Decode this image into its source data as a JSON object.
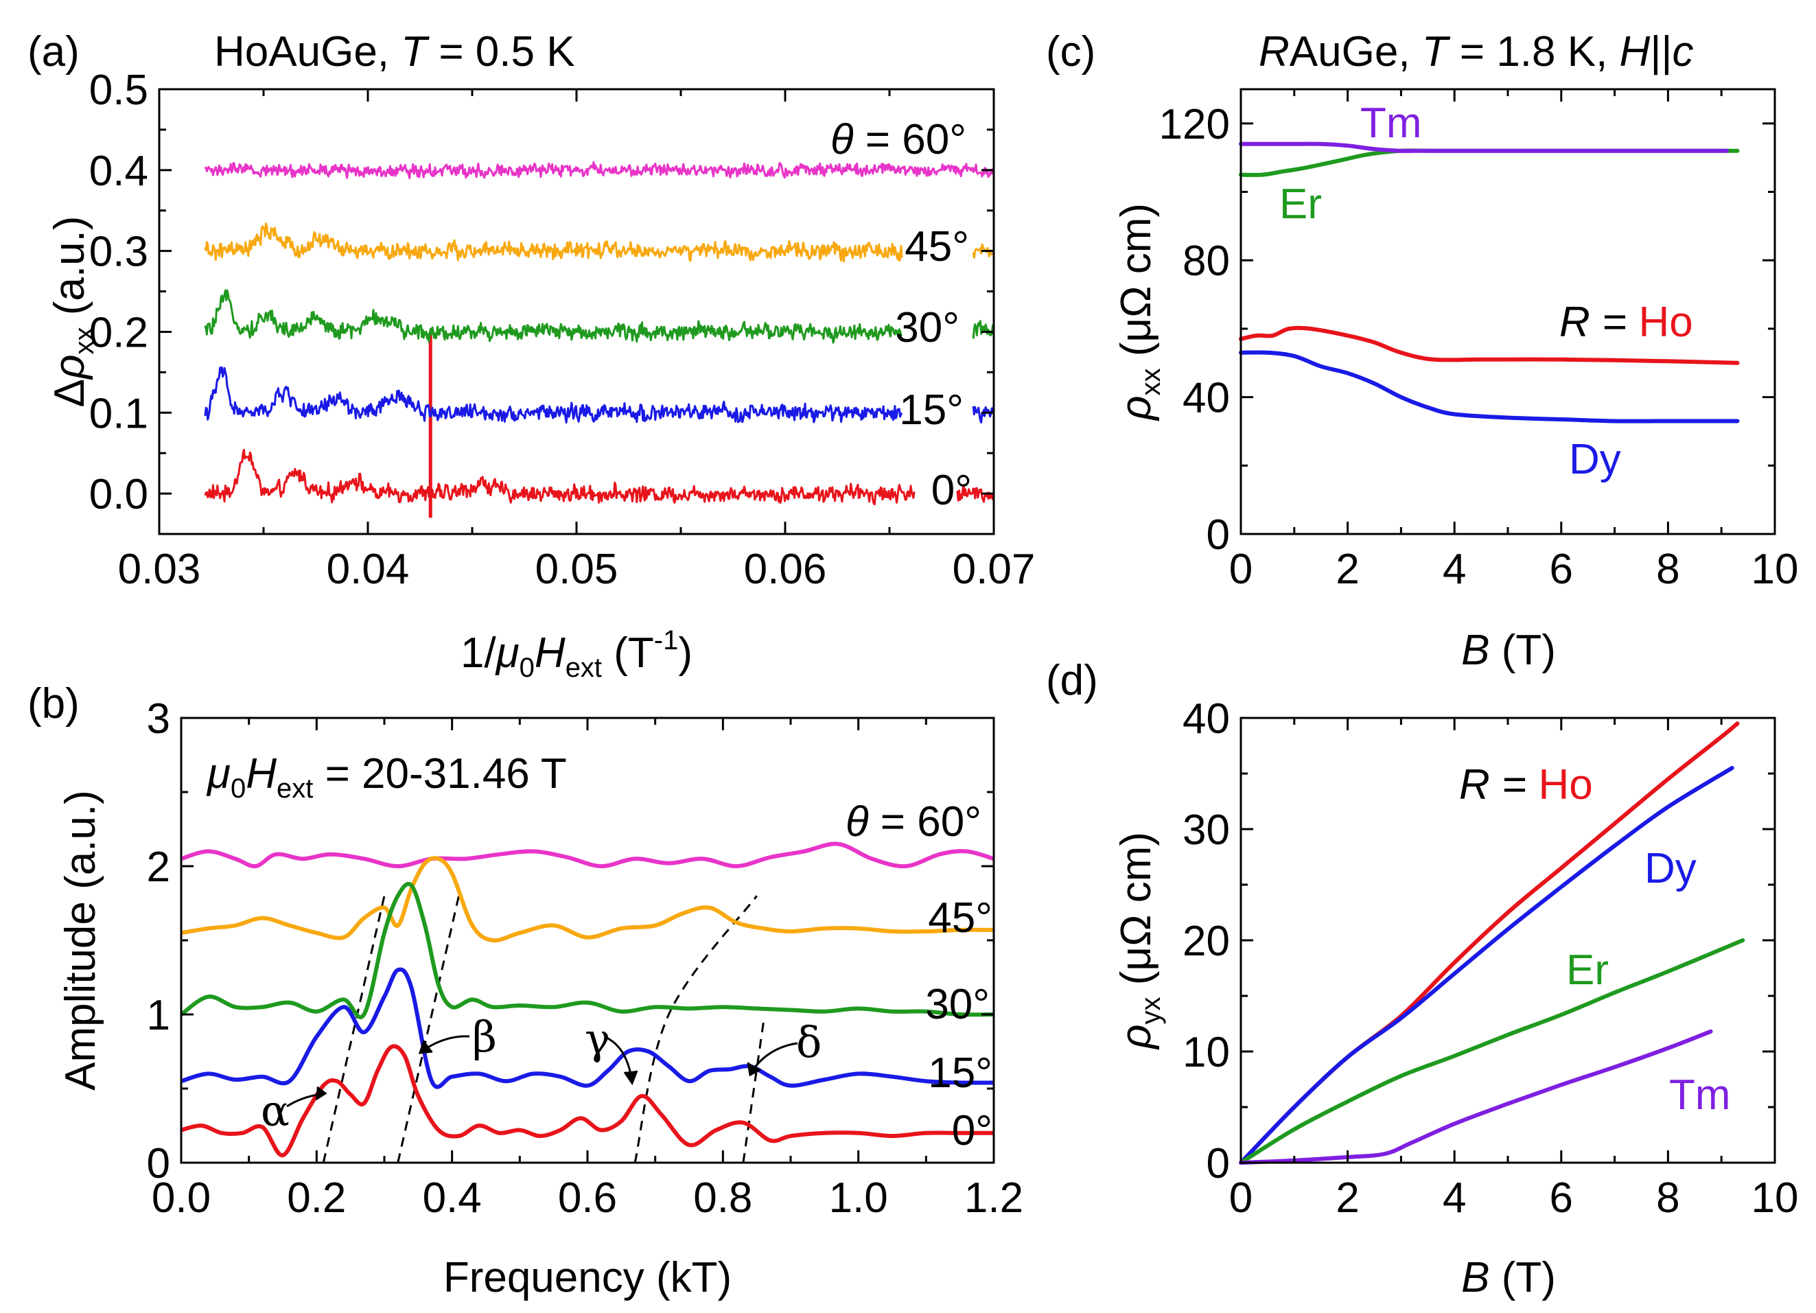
{
  "colors": {
    "0": "#e8141b",
    "15": "#1a1ae6",
    "30": "#1f9a1f",
    "45": "#f8a810",
    "60": "#e834c8",
    "Ho": "#e8141b",
    "Dy": "#1a1ae6",
    "Er": "#1f9a1f",
    "Tm": "#7f1fe0",
    "axis": "#000000",
    "ref": "#000000"
  },
  "chart_data": [
    {
      "panel": "(a)",
      "type": "line",
      "title_prefix": "HoAuGe, ",
      "title_T": "T",
      "title_suffix": " = 0.5 K",
      "xlabel_pre": "1/",
      "xlabel_mu": "μ",
      "xlabel_sub0": "0",
      "xlabel_H": "H",
      "xlabel_sub": "ext",
      "xlabel_unit": " (T",
      "xlabel_sup": "-1",
      "xlabel_close": ")",
      "ylabel_delta": "Δ",
      "ylabel_rho": "ρ",
      "ylabel_sub": "xx",
      "ylabel_unit": " (a.u.)",
      "xlim": [
        0.03,
        0.07
      ],
      "ylim": [
        -0.05,
        0.5
      ],
      "xticks": [
        "0.03",
        "0.04",
        "0.05",
        "0.06",
        "0.07"
      ],
      "yticks": [
        "0.0",
        "0.1",
        "0.2",
        "0.3",
        "0.4",
        "0.5"
      ],
      "theta_symbol": "θ",
      "theta_label": " = 60°",
      "series": [
        {
          "name": "0°",
          "offset": 0.0,
          "xmin": 0.0322,
          "xmax": 0.0702,
          "gap": [
            0.0662,
            0.0682
          ],
          "noise": 0.009,
          "peaks": [
            [
              0.0342,
              0.05,
              0.0005
            ],
            [
              0.0366,
              0.025,
              0.0006
            ],
            [
              0.0393,
              0.018,
              0.0006
            ],
            [
              0.0455,
              0.012,
              0.0008
            ]
          ],
          "spike": 0.043,
          "spike_top": 0.2,
          "color_key": "0"
        },
        {
          "name": "15°",
          "offset": 0.1,
          "xmin": 0.0322,
          "xmax": 0.0702,
          "gap": [
            0.0656,
            0.069
          ],
          "noise": 0.009,
          "peaks": [
            [
              0.033,
              0.05,
              0.0004
            ],
            [
              0.036,
              0.025,
              0.0006
            ],
            [
              0.0385,
              0.018,
              0.0006
            ],
            [
              0.0415,
              0.02,
              0.0008
            ]
          ],
          "color_key": "15"
        },
        {
          "name": "30°",
          "offset": 0.2,
          "xmin": 0.0322,
          "xmax": 0.0702,
          "gap": [
            0.0656,
            0.069
          ],
          "noise": 0.009,
          "peaks": [
            [
              0.0332,
              0.04,
              0.0005
            ],
            [
              0.0352,
              0.02,
              0.0006
            ],
            [
              0.0375,
              0.018,
              0.0006
            ],
            [
              0.0405,
              0.018,
              0.0008
            ]
          ],
          "color_key": "30"
        },
        {
          "name": "45°",
          "offset": 0.3,
          "xmin": 0.0322,
          "xmax": 0.0702,
          "gap": [
            0.0656,
            0.069
          ],
          "noise": 0.009,
          "peaks": [
            [
              0.0353,
              0.025,
              0.0007
            ],
            [
              0.0378,
              0.015,
              0.0007
            ]
          ],
          "color_key": "45"
        },
        {
          "name": "60°",
          "offset": 0.4,
          "xmin": 0.0322,
          "xmax": 0.0702,
          "noise": 0.007,
          "peaks": [],
          "color_key": "60"
        }
      ],
      "labels": [
        "0°",
        "15°",
        "30°",
        "45°"
      ]
    },
    {
      "panel": "(b)",
      "type": "line",
      "annotation_mu": "μ",
      "annotation_sub0": "0",
      "annotation_H": "H",
      "annotation_sub": "ext",
      "annotation_rest": " = 20-31.46 T",
      "xlabel": "Frequency (kT)",
      "ylabel": "Amplitude (a.u.)",
      "xlim": [
        0.0,
        1.2
      ],
      "ylim": [
        0,
        3
      ],
      "xticks": [
        "0.0",
        "0.2",
        "0.4",
        "0.6",
        "0.8",
        "1.0",
        "1.2"
      ],
      "yticks": [
        "0",
        "1",
        "2",
        "3"
      ],
      "theta_symbol": "θ",
      "theta_label": " = 60°",
      "series": [
        {
          "name": "0°",
          "color_key": "0",
          "x": [
            0.0,
            0.03,
            0.06,
            0.09,
            0.12,
            0.15,
            0.18,
            0.21,
            0.23,
            0.25,
            0.27,
            0.29,
            0.31,
            0.33,
            0.35,
            0.38,
            0.41,
            0.44,
            0.47,
            0.5,
            0.53,
            0.56,
            0.59,
            0.62,
            0.65,
            0.68,
            0.71,
            0.75,
            0.79,
            0.83,
            0.87,
            0.9,
            0.95,
            1.0,
            1.05,
            1.1,
            1.15,
            1.2
          ],
          "y": [
            0.22,
            0.25,
            0.2,
            0.2,
            0.24,
            0.05,
            0.3,
            0.52,
            0.55,
            0.46,
            0.4,
            0.62,
            0.78,
            0.72,
            0.45,
            0.22,
            0.18,
            0.25,
            0.2,
            0.22,
            0.18,
            0.22,
            0.3,
            0.22,
            0.28,
            0.45,
            0.32,
            0.12,
            0.22,
            0.27,
            0.15,
            0.18,
            0.2,
            0.2,
            0.18,
            0.2,
            0.2,
            0.2
          ]
        },
        {
          "name": "15°",
          "color_key": "15",
          "x": [
            0.0,
            0.04,
            0.08,
            0.12,
            0.16,
            0.2,
            0.24,
            0.27,
            0.3,
            0.32,
            0.34,
            0.37,
            0.4,
            0.44,
            0.48,
            0.52,
            0.56,
            0.6,
            0.63,
            0.66,
            0.69,
            0.72,
            0.75,
            0.78,
            0.81,
            0.84,
            0.87,
            0.9,
            0.95,
            1.0,
            1.05,
            1.1,
            1.15,
            1.2
          ],
          "y": [
            0.55,
            0.6,
            0.56,
            0.58,
            0.55,
            0.85,
            1.05,
            0.88,
            1.12,
            1.3,
            1.18,
            0.55,
            0.58,
            0.6,
            0.55,
            0.6,
            0.58,
            0.52,
            0.62,
            0.75,
            0.75,
            0.65,
            0.55,
            0.62,
            0.63,
            0.65,
            0.58,
            0.52,
            0.56,
            0.6,
            0.58,
            0.55,
            0.54,
            0.54
          ]
        },
        {
          "name": "30°",
          "color_key": "30",
          "x": [
            0.0,
            0.04,
            0.08,
            0.12,
            0.16,
            0.2,
            0.24,
            0.27,
            0.3,
            0.32,
            0.34,
            0.36,
            0.38,
            0.4,
            0.43,
            0.46,
            0.5,
            0.55,
            0.6,
            0.65,
            0.7,
            0.75,
            0.8,
            0.85,
            0.9,
            0.95,
            1.0,
            1.05,
            1.1,
            1.15,
            1.2
          ],
          "y": [
            1.0,
            1.12,
            1.05,
            1.05,
            1.08,
            1.02,
            1.1,
            1.0,
            1.55,
            1.8,
            1.87,
            1.6,
            1.2,
            1.05,
            1.1,
            1.05,
            1.06,
            1.05,
            1.08,
            1.02,
            1.05,
            1.04,
            1.05,
            1.04,
            1.03,
            1.02,
            1.04,
            1.02,
            1.02,
            1.0,
            1.0
          ]
        },
        {
          "name": "45°",
          "color_key": "45",
          "x": [
            0.0,
            0.04,
            0.08,
            0.12,
            0.16,
            0.2,
            0.24,
            0.27,
            0.3,
            0.32,
            0.34,
            0.36,
            0.38,
            0.4,
            0.43,
            0.46,
            0.5,
            0.55,
            0.6,
            0.65,
            0.7,
            0.74,
            0.78,
            0.82,
            0.86,
            0.9,
            0.95,
            1.0,
            1.05,
            1.1,
            1.15,
            1.2
          ],
          "y": [
            1.55,
            1.58,
            1.6,
            1.65,
            1.6,
            1.55,
            1.52,
            1.65,
            1.72,
            1.6,
            1.85,
            2.02,
            2.05,
            1.95,
            1.6,
            1.5,
            1.55,
            1.6,
            1.52,
            1.58,
            1.6,
            1.68,
            1.72,
            1.62,
            1.58,
            1.56,
            1.58,
            1.58,
            1.56,
            1.56,
            1.57,
            1.57
          ]
        },
        {
          "name": "60°",
          "color_key": "60",
          "x": [
            0.0,
            0.04,
            0.08,
            0.11,
            0.14,
            0.18,
            0.22,
            0.27,
            0.32,
            0.37,
            0.42,
            0.47,
            0.52,
            0.57,
            0.62,
            0.67,
            0.72,
            0.77,
            0.82,
            0.87,
            0.92,
            0.97,
            1.02,
            1.07,
            1.12,
            1.16,
            1.2
          ],
          "y": [
            2.05,
            2.1,
            2.05,
            2.0,
            2.08,
            2.05,
            2.08,
            2.05,
            2.0,
            2.05,
            2.05,
            2.08,
            2.1,
            2.06,
            2.0,
            2.05,
            2.02,
            2.05,
            2.0,
            2.06,
            2.1,
            2.15,
            2.05,
            2.0,
            2.08,
            2.1,
            2.05
          ]
        }
      ],
      "labels": [
        "0°",
        "15°",
        "30°",
        "45°"
      ],
      "greek": [
        "α",
        "β",
        "γ",
        "δ"
      ],
      "dashed_guides": [
        [
          [
            0.21,
            0.0
          ],
          [
            0.3,
            1.8
          ]
        ],
        [
          [
            0.32,
            0.0
          ],
          [
            0.41,
            1.8
          ]
        ],
        [
          [
            0.67,
            0.0
          ],
          [
            0.72,
            1.0
          ],
          [
            0.85,
            1.8
          ]
        ],
        [
          [
            0.83,
            0.0
          ],
          [
            0.86,
            0.95
          ]
        ]
      ]
    },
    {
      "panel": "(c)",
      "type": "line",
      "title_R": "R",
      "title_mid": "AuGe, ",
      "title_T": "T",
      "title_mid2": " = 1.8 K, ",
      "title_H": "H",
      "title_par": "||",
      "title_c": "c",
      "xlabel_B": "B",
      "xlabel_unit": " (T)",
      "ylabel_rho": "ρ",
      "ylabel_sub": "xx",
      "ylabel_unit": " (μΩ cm)",
      "xlim": [
        0,
        10
      ],
      "ylim": [
        0,
        130
      ],
      "xticks": [
        "0",
        "2",
        "4",
        "6",
        "8",
        "10"
      ],
      "yticks": [
        "0",
        "40",
        "80",
        "120"
      ],
      "r_eq": "R = ",
      "series": [
        {
          "name": "Ho",
          "color_key": "Ho",
          "x": [
            0,
            0.3,
            0.6,
            0.9,
            1.3,
            2.0,
            2.5,
            3.0,
            3.6,
            4.5,
            6,
            8,
            9.3
          ],
          "y": [
            57,
            58,
            58,
            60,
            60,
            58,
            56,
            53,
            51,
            51,
            51,
            50.5,
            50
          ]
        },
        {
          "name": "Dy",
          "color_key": "Dy",
          "x": [
            0,
            0.5,
            1.0,
            1.5,
            2.0,
            2.5,
            3.0,
            3.5,
            4.0,
            5,
            6,
            7,
            8,
            9.3
          ],
          "y": [
            53,
            53,
            52,
            49,
            47,
            44,
            40,
            37,
            35,
            34,
            33.5,
            33,
            33,
            33
          ]
        },
        {
          "name": "Er",
          "color_key": "Er",
          "x": [
            0,
            0.4,
            0.8,
            1.2,
            1.8,
            2.4,
            3.0,
            3.6,
            5,
            7,
            9.3
          ],
          "y": [
            105,
            105,
            106,
            107,
            109,
            111,
            112,
            112,
            112,
            112,
            112
          ]
        },
        {
          "name": "Tm",
          "color_key": "Tm",
          "x": [
            0,
            0.5,
            1.0,
            1.5,
            2.0,
            2.5,
            3.0,
            3.5,
            4.5,
            6,
            8,
            9.1
          ],
          "y": [
            114,
            114,
            114,
            114,
            113.5,
            112.5,
            112,
            112,
            112,
            112,
            112,
            112
          ]
        }
      ]
    },
    {
      "panel": "(d)",
      "type": "line",
      "xlabel_B": "B",
      "xlabel_unit": " (T)",
      "ylabel_rho": "ρ",
      "ylabel_sub": "yx",
      "ylabel_unit": " (μΩ cm)",
      "xlim": [
        0,
        10
      ],
      "ylim": [
        0,
        40
      ],
      "xticks": [
        "0",
        "2",
        "4",
        "6",
        "8",
        "10"
      ],
      "yticks": [
        "0",
        "10",
        "20",
        "30",
        "40"
      ],
      "r_eq": "R = ",
      "series": [
        {
          "name": "Ho",
          "color_key": "Ho",
          "x": [
            0,
            1,
            2,
            3,
            4,
            5,
            6,
            7,
            8,
            9,
            9.3
          ],
          "y": [
            0,
            5,
            9.5,
            13.2,
            18,
            22.5,
            26.5,
            30.5,
            34.5,
            38.3,
            39.5
          ]
        },
        {
          "name": "Dy",
          "color_key": "Dy",
          "x": [
            0,
            1,
            2,
            3,
            4,
            5,
            6,
            7,
            8,
            9.2
          ],
          "y": [
            0,
            5,
            9.5,
            13,
            17,
            21,
            24.8,
            28.5,
            32,
            35.5
          ]
        },
        {
          "name": "Er",
          "color_key": "Er",
          "x": [
            0,
            1,
            2,
            3,
            4,
            5,
            6,
            7,
            8,
            9.4
          ],
          "y": [
            0,
            3,
            5.5,
            7.8,
            9.6,
            11.5,
            13.3,
            15.3,
            17.2,
            20
          ]
        },
        {
          "name": "Tm",
          "color_key": "Tm",
          "x": [
            0,
            1,
            2,
            2.7,
            3.2,
            4,
            5,
            6,
            7,
            8,
            8.8
          ],
          "y": [
            0,
            0.2,
            0.5,
            0.8,
            1.8,
            3.5,
            5.3,
            7,
            8.6,
            10.3,
            11.8
          ]
        }
      ]
    }
  ]
}
